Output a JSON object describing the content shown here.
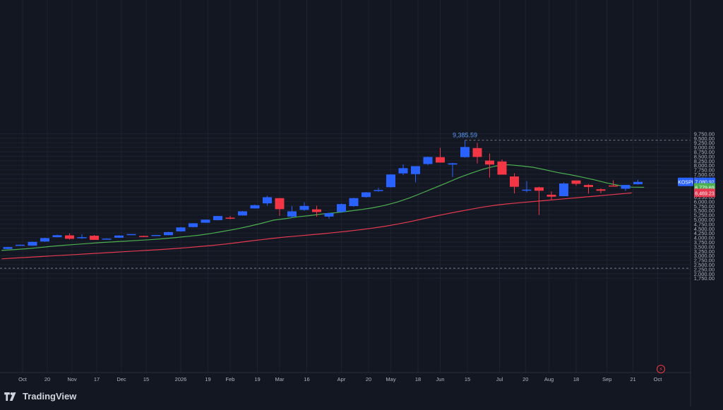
{
  "branding": {
    "name": "TradingView",
    "icon": "tradingview-logo-icon"
  },
  "colors": {
    "background": "#131722",
    "grid": "#1e2230",
    "text": "#b2b5be",
    "bullish": "#2962ff",
    "bearish": "#f23645",
    "ma_fast": "#4caf50",
    "ma_slow": "#e53950",
    "high_label": "#5b9cf6"
  },
  "chart_data": {
    "type": "candlestick",
    "symbol": "KOSPI",
    "interval": "weekly",
    "y_axis": {
      "min": 1500,
      "max": 9750,
      "position": "right",
      "ticks": [
        "9,750.00",
        "9,500.00",
        "9,250.00",
        "9,000.00",
        "8,750.00",
        "8,500.00",
        "8,250.00",
        "8,000.00",
        "7,750.00",
        "7,500.00",
        "7,250.00",
        "7,000.00",
        "6,750.00",
        "6,500.00",
        "6,250.00",
        "6,000.00",
        "5,750.00",
        "5,500.00",
        "5,250.00",
        "5,000.00",
        "4,750.00",
        "4,500.00",
        "4,250.00",
        "4,000.00",
        "3,750.00",
        "3,500.00",
        "3,250.00",
        "3,000.00",
        "2,750.00",
        "2,500.00",
        "2,250.00",
        "2,000.00",
        "1,750.00"
      ]
    },
    "x_axis": {
      "ticks": [
        {
          "label": "Oct",
          "week": 1.2
        },
        {
          "label": "20",
          "week": 3.2
        },
        {
          "label": "Nov",
          "week": 5.2
        },
        {
          "label": "17",
          "week": 7.2
        },
        {
          "label": "Dec",
          "week": 9.2
        },
        {
          "label": "15",
          "week": 11.2
        },
        {
          "label": "2026",
          "week": 14.0
        },
        {
          "label": "19",
          "week": 16.2
        },
        {
          "label": "Feb",
          "week": 18.0
        },
        {
          "label": "19",
          "week": 20.2
        },
        {
          "label": "Mar",
          "week": 22.0
        },
        {
          "label": "16",
          "week": 24.2
        },
        {
          "label": "Apr",
          "week": 27.0
        },
        {
          "label": "20",
          "week": 29.2
        },
        {
          "label": "May",
          "week": 31.0
        },
        {
          "label": "18",
          "week": 33.2
        },
        {
          "label": "Jun",
          "week": 35.0
        },
        {
          "label": "15",
          "week": 37.2
        },
        {
          "label": "Jul",
          "week": 39.8
        },
        {
          "label": "20",
          "week": 41.9
        },
        {
          "label": "Aug",
          "week": 43.8
        },
        {
          "label": "18",
          "week": 46.0
        },
        {
          "label": "Sep",
          "week": 48.5
        },
        {
          "label": "21",
          "week": 50.6
        },
        {
          "label": "Oct",
          "week": 52.6
        }
      ]
    },
    "candles": [
      {
        "o": 3370,
        "h": 3480,
        "l": 3360,
        "c": 3470
      },
      {
        "o": 3570,
        "h": 3620,
        "l": 3560,
        "c": 3600
      },
      {
        "o": 3550,
        "h": 3780,
        "l": 3540,
        "c": 3760
      },
      {
        "o": 3780,
        "h": 3990,
        "l": 3760,
        "c": 3970
      },
      {
        "o": 4020,
        "h": 4160,
        "l": 4010,
        "c": 4130
      },
      {
        "o": 4120,
        "h": 4230,
        "l": 3880,
        "c": 3930
      },
      {
        "o": 4000,
        "h": 4180,
        "l": 3930,
        "c": 4020
      },
      {
        "o": 4100,
        "h": 4140,
        "l": 3860,
        "c": 3870
      },
      {
        "o": 3920,
        "h": 3960,
        "l": 3910,
        "c": 3940
      },
      {
        "o": 3990,
        "h": 4130,
        "l": 3980,
        "c": 4110
      },
      {
        "o": 4140,
        "h": 4180,
        "l": 4130,
        "c": 4190
      },
      {
        "o": 4090,
        "h": 4100,
        "l": 4030,
        "c": 4050
      },
      {
        "o": 4110,
        "h": 4150,
        "l": 4105,
        "c": 4140
      },
      {
        "o": 4130,
        "h": 4320,
        "l": 4120,
        "c": 4300
      },
      {
        "o": 4340,
        "h": 4580,
        "l": 4330,
        "c": 4560
      },
      {
        "o": 4580,
        "h": 4800,
        "l": 4560,
        "c": 4790
      },
      {
        "o": 4820,
        "h": 5000,
        "l": 4810,
        "c": 4990
      },
      {
        "o": 4960,
        "h": 5200,
        "l": 4950,
        "c": 5190
      },
      {
        "o": 5100,
        "h": 5200,
        "l": 5010,
        "c": 5060
      },
      {
        "o": 5220,
        "h": 5470,
        "l": 5210,
        "c": 5450
      },
      {
        "o": 5610,
        "h": 5820,
        "l": 5600,
        "c": 5790
      },
      {
        "o": 5890,
        "h": 6310,
        "l": 5760,
        "c": 6230
      },
      {
        "o": 6180,
        "h": 6190,
        "l": 5200,
        "c": 5570
      },
      {
        "o": 5160,
        "h": 5750,
        "l": 5080,
        "c": 5450
      },
      {
        "o": 5530,
        "h": 5950,
        "l": 5480,
        "c": 5750
      },
      {
        "o": 5560,
        "h": 5760,
        "l": 5150,
        "c": 5410
      },
      {
        "o": 5160,
        "h": 5370,
        "l": 5050,
        "c": 5350
      },
      {
        "o": 5420,
        "h": 5880,
        "l": 5380,
        "c": 5850
      },
      {
        "o": 5740,
        "h": 6200,
        "l": 5700,
        "c": 6180
      },
      {
        "o": 6240,
        "h": 6520,
        "l": 6200,
        "c": 6500
      },
      {
        "o": 6570,
        "h": 6750,
        "l": 6540,
        "c": 6630
      },
      {
        "o": 6790,
        "h": 7500,
        "l": 6770,
        "c": 7490
      },
      {
        "o": 7550,
        "h": 8050,
        "l": 7450,
        "c": 7840
      },
      {
        "o": 7510,
        "h": 7950,
        "l": 7050,
        "c": 7950
      },
      {
        "o": 8070,
        "h": 8480,
        "l": 8010,
        "c": 8460
      },
      {
        "o": 8450,
        "h": 8970,
        "l": 8150,
        "c": 8150
      },
      {
        "o": 8040,
        "h": 8140,
        "l": 7360,
        "c": 8110
      },
      {
        "o": 8450,
        "h": 9385.59,
        "l": 8420,
        "c": 9010
      },
      {
        "o": 8950,
        "h": 9240,
        "l": 8100,
        "c": 8460
      },
      {
        "o": 8260,
        "h": 8650,
        "l": 7320,
        "c": 8040
      },
      {
        "o": 8210,
        "h": 8320,
        "l": 7500,
        "c": 7480
      },
      {
        "o": 7380,
        "h": 7560,
        "l": 6440,
        "c": 6810
      },
      {
        "o": 6640,
        "h": 7120,
        "l": 6500,
        "c": 6650
      },
      {
        "o": 6780,
        "h": 6810,
        "l": 5250,
        "c": 6590
      },
      {
        "o": 6370,
        "h": 6560,
        "l": 6100,
        "c": 6260
      },
      {
        "o": 6290,
        "h": 7050,
        "l": 6280,
        "c": 6990
      },
      {
        "o": 7160,
        "h": 7160,
        "l": 6870,
        "c": 6970
      },
      {
        "o": 6910,
        "h": 6960,
        "l": 6430,
        "c": 6800
      },
      {
        "o": 6670,
        "h": 6720,
        "l": 6450,
        "c": 6590
      },
      {
        "o": 6880,
        "h": 7170,
        "l": 6820,
        "c": 6860
      },
      {
        "o": 6700,
        "h": 6920,
        "l": 6580,
        "c": 6910
      },
      {
        "o": 6950,
        "h": 7200,
        "l": 6940,
        "c": 7080.92
      }
    ],
    "series": [
      {
        "name": "",
        "type": "line",
        "color": "#4caf50",
        "values": [
          3290,
          3330,
          3380,
          3440,
          3510,
          3570,
          3620,
          3670,
          3720,
          3760,
          3800,
          3840,
          3880,
          3930,
          3990,
          4060,
          4130,
          4230,
          4350,
          4470,
          4620,
          4780,
          4960,
          5050,
          5150,
          5220,
          5310,
          5370,
          5450,
          5540,
          5640,
          5780,
          5960,
          6190,
          6460,
          6740,
          7020,
          7310,
          7560,
          7790,
          7960,
          8030,
          7970,
          7890,
          7750,
          7600,
          7480,
          7340,
          7190,
          7020,
          6880,
          6790,
          6779.69
        ]
      },
      {
        "name": "",
        "type": "line",
        "color": "#e53950",
        "values": [
          2820,
          2860,
          2900,
          2940,
          2980,
          3020,
          3060,
          3100,
          3140,
          3180,
          3220,
          3260,
          3300,
          3340,
          3390,
          3440,
          3500,
          3560,
          3630,
          3710,
          3800,
          3880,
          3960,
          4030,
          4090,
          4150,
          4210,
          4280,
          4350,
          4430,
          4520,
          4620,
          4740,
          4870,
          5020,
          5170,
          5310,
          5440,
          5570,
          5690,
          5790,
          5870,
          5930,
          5990,
          6050,
          6110,
          6170,
          6230,
          6290,
          6350,
          6410,
          6469.23
        ]
      }
    ],
    "price_labels": {
      "symbol": "KOSPI",
      "last": "7,080.92",
      "ma_fast": "6,779.69",
      "ma_slow": "6,469.23"
    },
    "high_marker": {
      "label": "9,385.59",
      "value": 9385.59
    },
    "support_level": {
      "value": 2300
    }
  }
}
